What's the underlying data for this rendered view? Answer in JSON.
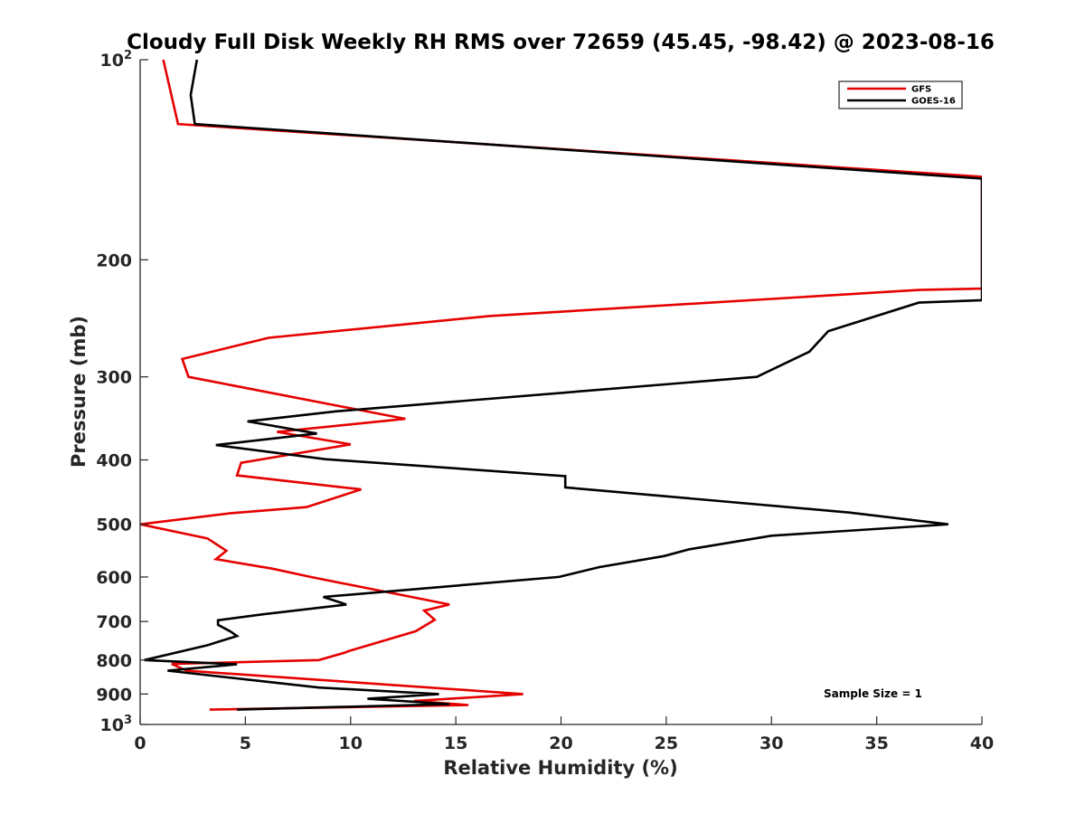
{
  "chart_data": {
    "type": "line",
    "title": "Cloudy Full Disk Weekly RH RMS over 72659 (45.45, -98.42) @ 2023-08-16",
    "xlabel": "Relative Humidity (%)",
    "ylabel": "Pressure (mb)",
    "xlim": [
      0,
      40
    ],
    "ylim": [
      100,
      1000
    ],
    "y_scale": "log",
    "y_reversed": true,
    "grid": false,
    "x_ticks": [
      0,
      5,
      10,
      15,
      20,
      25,
      30,
      35,
      40
    ],
    "y_ticks": [
      {
        "value": 100,
        "base": "10",
        "exp": "2"
      },
      {
        "value": 200,
        "label": "200"
      },
      {
        "value": 300,
        "label": "300"
      },
      {
        "value": 400,
        "label": "400"
      },
      {
        "value": 500,
        "label": "500"
      },
      {
        "value": 600,
        "label": "600"
      },
      {
        "value": 700,
        "label": "700"
      },
      {
        "value": 800,
        "label": "800"
      },
      {
        "value": 900,
        "label": "900"
      },
      {
        "value": 1000,
        "base": "10",
        "exp": "3"
      }
    ],
    "legend": {
      "position": "top-right"
    },
    "annotation": "Sample Size = 1",
    "series": [
      {
        "name": "GFS",
        "color": "#e60000",
        "points": [
          [
            1.1,
            100
          ],
          [
            1.8,
            125
          ],
          [
            40,
            150
          ],
          [
            40,
            221
          ],
          [
            37,
            222
          ],
          [
            16.6,
            243
          ],
          [
            6.1,
            262
          ],
          [
            2.0,
            282
          ],
          [
            2.3,
            300
          ],
          [
            12.6,
            347
          ],
          [
            6.5,
            363
          ],
          [
            10.0,
            379
          ],
          [
            4.8,
            404
          ],
          [
            4.6,
            422
          ],
          [
            10.5,
            443
          ],
          [
            7.9,
            471
          ],
          [
            4.3,
            481
          ],
          [
            0,
            500
          ],
          [
            3.2,
            525
          ],
          [
            4.1,
            548
          ],
          [
            3.6,
            564
          ],
          [
            6.3,
            583
          ],
          [
            8.1,
            600
          ],
          [
            14.7,
            660
          ],
          [
            13.5,
            674
          ],
          [
            14.0,
            696
          ],
          [
            13.1,
            724
          ],
          [
            10.0,
            774
          ],
          [
            9.7,
            780
          ],
          [
            8.5,
            800
          ],
          [
            1.5,
            811
          ],
          [
            2.2,
            830
          ],
          [
            18.2,
            900
          ],
          [
            13.0,
            922
          ],
          [
            15.6,
            935
          ],
          [
            3.3,
            950
          ]
        ]
      },
      {
        "name": "GOES-16",
        "color": "#000000",
        "points": [
          [
            2.7,
            100
          ],
          [
            2.4,
            113
          ],
          [
            2.6,
            125
          ],
          [
            40,
            151
          ],
          [
            40,
            230
          ],
          [
            37.0,
            232
          ],
          [
            32.7,
            256
          ],
          [
            31.8,
            275
          ],
          [
            29.3,
            300
          ],
          [
            9.3,
            338
          ],
          [
            5.1,
            350
          ],
          [
            8.4,
            365
          ],
          [
            3.6,
            380
          ],
          [
            8.8,
            399
          ],
          [
            20.2,
            423
          ],
          [
            20.2,
            440
          ],
          [
            33.7,
            480
          ],
          [
            38.4,
            500
          ],
          [
            30.0,
            520
          ],
          [
            26.1,
            545
          ],
          [
            24.9,
            558
          ],
          [
            21.8,
            580
          ],
          [
            19.9,
            600
          ],
          [
            8.7,
            643
          ],
          [
            9.8,
            660
          ],
          [
            5.8,
            683
          ],
          [
            3.7,
            697
          ],
          [
            3.7,
            708
          ],
          [
            4.3,
            725
          ],
          [
            4.6,
            736
          ],
          [
            3.2,
            760
          ],
          [
            0.2,
            800
          ],
          [
            4.6,
            812
          ],
          [
            1.3,
            830
          ],
          [
            8.5,
            880
          ],
          [
            14.2,
            900
          ],
          [
            10.8,
            915
          ],
          [
            14.7,
            932
          ],
          [
            4.6,
            950
          ]
        ]
      }
    ]
  }
}
